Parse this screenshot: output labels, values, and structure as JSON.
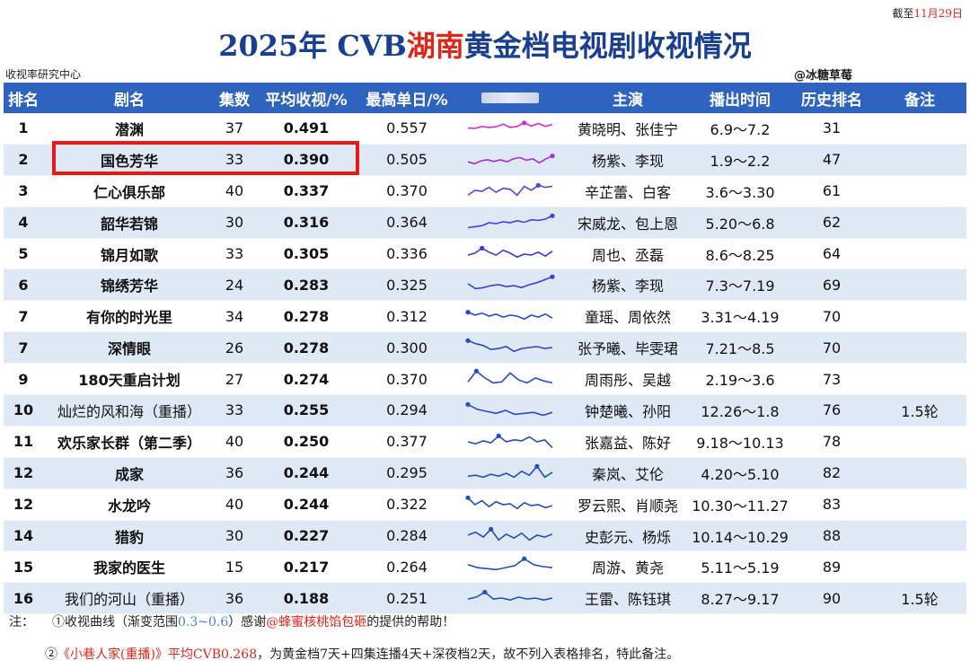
{
  "header": {
    "cutoff_prefix": "截至",
    "cutoff_date": "11月29日",
    "title_pre": "2025年 CVB",
    "title_hl": "湖南",
    "title_post": "黄金档电视剧收视情况",
    "org": "收视率研究中心",
    "handle": "@冰糖草莓"
  },
  "columns": [
    "排名",
    "剧名",
    "集数",
    "平均收视/%",
    "最高单日/%",
    "",
    "主演",
    "播出时间",
    "历史排名",
    "备注"
  ],
  "colors": {
    "header_bg": "#2e64bf",
    "row_alt": "#dfe9f6",
    "title_blue": "#1a3f8f",
    "accent_red": "#e0261b"
  },
  "rows": [
    {
      "rank": "1",
      "name": "潜渊",
      "eps": "37",
      "avg": "0.491",
      "max": "0.557",
      "cast": "黄晓明、张佳宁",
      "period": "6.9～7.2",
      "hist": "31",
      "note": "",
      "color": "#d92ad0",
      "bold": true,
      "curve": [
        0.52,
        0.5,
        0.6,
        0.55,
        0.58,
        0.72,
        0.55,
        0.6,
        0.78,
        0.62,
        0.75,
        0.6,
        0.7
      ]
    },
    {
      "rank": "2",
      "name": "国色芳华",
      "eps": "33",
      "avg": "0.390",
      "max": "0.505",
      "cast": "杨紫、李现",
      "period": "1.9～2.2",
      "hist": "47",
      "note": "",
      "color": "#a62fd0",
      "bold": true,
      "curve": [
        0.4,
        0.3,
        0.45,
        0.5,
        0.42,
        0.5,
        0.4,
        0.55,
        0.62,
        0.48,
        0.55,
        0.35,
        0.55,
        0.7
      ]
    },
    {
      "rank": "3",
      "name": "仁心俱乐部",
      "eps": "40",
      "avg": "0.337",
      "max": "0.370",
      "cast": "辛芷蕾、白客",
      "period": "3.6～3.30",
      "hist": "61",
      "note": "",
      "color": "#5b3fd6",
      "bold": true,
      "curve": [
        0.3,
        0.55,
        0.5,
        0.7,
        0.45,
        0.65,
        0.6,
        0.3,
        0.75,
        0.55,
        0.8,
        0.7,
        0.75
      ]
    },
    {
      "rank": "4",
      "name": "韶华若锦",
      "eps": "30",
      "avg": "0.316",
      "max": "0.364",
      "cast": "宋威龙、包上恩",
      "period": "5.20～6.8",
      "hist": "62",
      "note": "",
      "color": "#4a3fd8",
      "bold": true,
      "curve": [
        0.25,
        0.3,
        0.35,
        0.5,
        0.45,
        0.55,
        0.5,
        0.6,
        0.52,
        0.65,
        0.62,
        0.68,
        0.85
      ]
    },
    {
      "rank": "5",
      "name": "锦月如歌",
      "eps": "33",
      "avg": "0.305",
      "max": "0.336",
      "cast": "周也、丞磊",
      "period": "8.6～8.25",
      "hist": "64",
      "note": "",
      "color": "#3a3cd6",
      "bold": true,
      "curve": [
        0.45,
        0.55,
        0.8,
        0.6,
        0.45,
        0.7,
        0.55,
        0.35,
        0.5,
        0.45,
        0.6,
        0.4,
        0.65
      ]
    },
    {
      "rank": "6",
      "name": "锦绣芳华",
      "eps": "24",
      "avg": "0.283",
      "max": "0.325",
      "cast": "杨紫、李现",
      "period": "7.3～7.19",
      "hist": "69",
      "note": "",
      "color": "#3542d0",
      "bold": true,
      "curve": [
        0.55,
        0.3,
        0.35,
        0.45,
        0.5,
        0.4,
        0.45,
        0.35,
        0.5,
        0.6,
        0.75,
        0.9
      ]
    },
    {
      "rank": "7",
      "name": "有你的时光里",
      "eps": "34",
      "avg": "0.278",
      "max": "0.312",
      "cast": "童瑶、周依然",
      "period": "3.31～4.19",
      "hist": "70",
      "note": "",
      "color": "#2f46c8",
      "bold": true,
      "curve": [
        0.7,
        0.55,
        0.65,
        0.5,
        0.6,
        0.45,
        0.55,
        0.5,
        0.35,
        0.55,
        0.45,
        0.6,
        0.4
      ]
    },
    {
      "rank": "7",
      "name": "深情眼",
      "eps": "26",
      "avg": "0.278",
      "max": "0.300",
      "cast": "张予曦、毕雯珺",
      "period": "7.21～8.5",
      "hist": "70",
      "note": "",
      "color": "#2b48c4",
      "bold": true,
      "curve": [
        0.85,
        0.7,
        0.6,
        0.4,
        0.45,
        0.55,
        0.3,
        0.45,
        0.5,
        0.55,
        0.45,
        0.5
      ]
    },
    {
      "rank": "9",
      "name": "180天重启计划",
      "eps": "27",
      "avg": "0.274",
      "max": "0.370",
      "cast": "周雨彤、吴越",
      "period": "2.19～3.6",
      "hist": "73",
      "note": "",
      "color": "#2a4ac2",
      "bold": true,
      "curve": [
        0.35,
        0.9,
        0.55,
        0.3,
        0.35,
        0.8,
        0.45,
        0.3,
        0.55,
        0.4,
        0.3
      ]
    },
    {
      "rank": "10",
      "name": "灿烂的风和海（重播）",
      "eps": "33",
      "avg": "0.255",
      "max": "0.294",
      "cast": "钟楚曦、孙阳",
      "period": "12.26～1.8",
      "hist": "76",
      "note": "1.5轮",
      "color": "#284cbf",
      "bold": false,
      "curve": [
        0.8,
        0.55,
        0.45,
        0.35,
        0.5,
        0.3,
        0.35,
        0.4,
        0.25,
        0.4
      ]
    },
    {
      "rank": "11",
      "name": "欢乐家长群（第二季）",
      "eps": "40",
      "avg": "0.250",
      "max": "0.377",
      "cast": "张嘉益、陈好",
      "period": "9.18～10.13",
      "hist": "78",
      "note": "",
      "color": "#264dbd",
      "bold": true,
      "curve": [
        0.5,
        0.4,
        0.55,
        0.45,
        0.8,
        0.5,
        0.6,
        0.55,
        0.75,
        0.5,
        0.6,
        0.2
      ]
    },
    {
      "rank": "12",
      "name": "成家",
      "eps": "36",
      "avg": "0.244",
      "max": "0.295",
      "cast": "秦岚、艾伦",
      "period": "4.20～5.10",
      "hist": "82",
      "note": "",
      "color": "#244fbb",
      "bold": true,
      "curve": [
        0.35,
        0.4,
        0.3,
        0.45,
        0.35,
        0.5,
        0.3,
        0.6,
        0.4,
        0.85,
        0.3,
        0.55
      ]
    },
    {
      "rank": "12",
      "name": "水龙吟",
      "eps": "40",
      "avg": "0.244",
      "max": "0.322",
      "cast": "罗云熙、肖顺尧",
      "period": "10.30～11.27",
      "hist": "83",
      "note": "",
      "color": "#2250b9",
      "bold": true,
      "curve": [
        0.85,
        0.5,
        0.7,
        0.4,
        0.65,
        0.5,
        0.55,
        0.3,
        0.6,
        0.45,
        0.5,
        0.35,
        0.45
      ]
    },
    {
      "rank": "14",
      "name": "猎豹",
      "eps": "30",
      "avg": "0.227",
      "max": "0.284",
      "cast": "史彭元、杨烁",
      "period": "10.14～10.29",
      "hist": "88",
      "note": "",
      "color": "#2051b7",
      "bold": true,
      "curve": [
        0.55,
        0.7,
        0.45,
        0.85,
        0.3,
        0.6,
        0.4,
        0.65,
        0.3,
        0.55,
        0.45,
        0.6
      ]
    },
    {
      "rank": "15",
      "name": "我家的医生",
      "eps": "15",
      "avg": "0.217",
      "max": "0.264",
      "cast": "周游、黄尧",
      "period": "5.11～5.19",
      "hist": "89",
      "note": "",
      "color": "#1e52b5",
      "bold": true,
      "curve": [
        0.6,
        0.45,
        0.4,
        0.35,
        0.45,
        0.55,
        0.9,
        0.6,
        0.5,
        0.45
      ]
    },
    {
      "rank": "16",
      "name": "我们的河山（重播）",
      "eps": "36",
      "avg": "0.188",
      "max": "0.251",
      "cast": "王雷、陈钰琪",
      "period": "8.27～9.17",
      "hist": "90",
      "note": "1.5轮",
      "color": "#1c53b3",
      "bold": false,
      "curve": [
        0.45,
        0.55,
        0.8,
        0.45,
        0.5,
        0.4,
        0.55,
        0.45,
        0.5,
        0.4,
        0.5
      ]
    }
  ],
  "notes": {
    "n1_prefix": "注：",
    "n1_a": "①收视曲线（渐变范围",
    "n1_range": "0.3~0.6",
    "n1_b": "）感谢",
    "n1_credit": "@蜂蜜核桃馅包砸",
    "n1_c": "的提供的帮助！",
    "n2_a": "②",
    "n2_title": "《小巷人家(重播)》平均CVB0.268",
    "n2_b": "，为黄金档7天+四集连播4天+深夜档2天，故不列入表格排名，特此备注。"
  }
}
